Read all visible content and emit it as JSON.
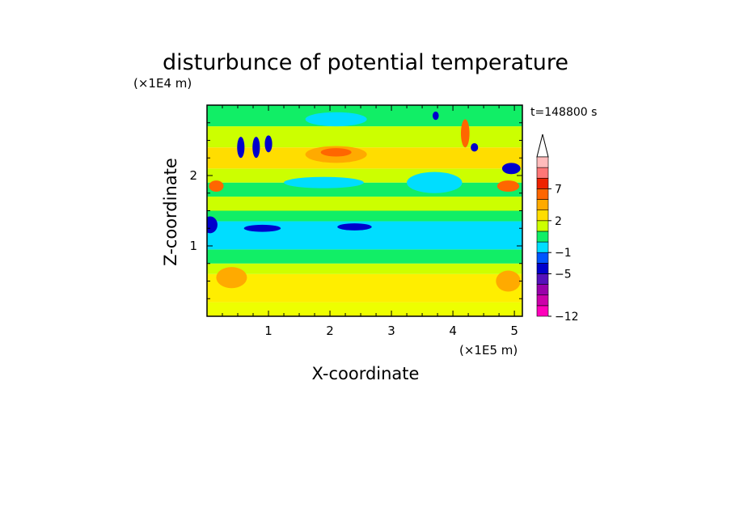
{
  "chart_data": {
    "type": "heatmap",
    "title": "disturbunce of potential temperature",
    "xlabel": "X-coordinate",
    "ylabel": "Z-coordinate",
    "x_unit": "(×1E5 m)",
    "y_unit": "(×1E4 m)",
    "time_label": "t=148800 s",
    "xlim": [
      0,
      5.13
    ],
    "ylim": [
      0,
      3.0
    ],
    "x_ticks": [
      1,
      2,
      3,
      4,
      5
    ],
    "y_ticks": [
      1,
      2
    ],
    "colorbar": {
      "labels": [
        {
          "value": -12,
          "text": "−12"
        },
        {
          "value": -5,
          "text": "−5"
        },
        {
          "value": -1,
          "text": "−1"
        },
        {
          "value": 2,
          "text": "2"
        },
        {
          "value": 7,
          "text": "7"
        }
      ],
      "colors": [
        "#ff00bb",
        "#cc00aa",
        "#9900aa",
        "#5511bb",
        "#0000cc",
        "#0055ff",
        "#00ddff",
        "#11ee66",
        "#ccff00",
        "#ffdd00",
        "#ffaa00",
        "#ff6600",
        "#ee2200",
        "#ff7777",
        "#ffbbbb"
      ],
      "extend": "max"
    },
    "bands": [
      {
        "z": [
          0.0,
          0.2
        ],
        "value": 1,
        "color": "#eeff00"
      },
      {
        "z": [
          0.2,
          0.6
        ],
        "value": 2,
        "color": "#ffee00"
      },
      {
        "z": [
          0.6,
          0.75
        ],
        "value": 1,
        "color": "#ccff00"
      },
      {
        "z": [
          0.75,
          0.95
        ],
        "value": 0,
        "color": "#11ee66"
      },
      {
        "z": [
          0.95,
          1.35
        ],
        "value": -1,
        "color": "#00ddff"
      },
      {
        "z": [
          1.35,
          1.5
        ],
        "value": 0,
        "color": "#11ee66"
      },
      {
        "z": [
          1.5,
          1.7
        ],
        "value": 1,
        "color": "#ccff00"
      },
      {
        "z": [
          1.7,
          1.9
        ],
        "value": 0,
        "color": "#11ee66"
      },
      {
        "z": [
          1.9,
          2.1
        ],
        "value": 1,
        "color": "#ccff00"
      },
      {
        "z": [
          2.1,
          2.4
        ],
        "value": 2,
        "color": "#ffdd00"
      },
      {
        "z": [
          2.4,
          2.7
        ],
        "value": 1,
        "color": "#ccff00"
      },
      {
        "z": [
          2.7,
          3.0
        ],
        "value": 0,
        "color": "#11ee66"
      }
    ],
    "features": [
      {
        "x": 0.05,
        "z": 1.3,
        "rx": 0.12,
        "rz": 0.12,
        "value": -5,
        "color": "#0000cc"
      },
      {
        "x": 2.1,
        "z": 2.3,
        "rx": 0.5,
        "rz": 0.12,
        "value": 4,
        "color": "#ffaa00"
      },
      {
        "x": 2.1,
        "z": 2.33,
        "rx": 0.25,
        "rz": 0.06,
        "value": 5,
        "color": "#ff6600"
      },
      {
        "x": 0.9,
        "z": 1.25,
        "rx": 0.3,
        "rz": 0.05,
        "value": -5,
        "color": "#0000cc"
      },
      {
        "x": 2.4,
        "z": 1.27,
        "rx": 0.28,
        "rz": 0.05,
        "value": -5,
        "color": "#0000cc"
      },
      {
        "x": 0.55,
        "z": 2.4,
        "rx": 0.06,
        "rz": 0.15,
        "value": -5,
        "color": "#0000cc"
      },
      {
        "x": 0.8,
        "z": 2.4,
        "rx": 0.06,
        "rz": 0.15,
        "value": -5,
        "color": "#0000cc"
      },
      {
        "x": 1.0,
        "z": 2.45,
        "rx": 0.06,
        "rz": 0.12,
        "value": -5,
        "color": "#0000cc"
      },
      {
        "x": 3.72,
        "z": 2.85,
        "rx": 0.05,
        "rz": 0.06,
        "value": -5,
        "color": "#0000cc"
      },
      {
        "x": 4.35,
        "z": 2.4,
        "rx": 0.06,
        "rz": 0.06,
        "value": -5,
        "color": "#0000cc"
      },
      {
        "x": 4.95,
        "z": 2.1,
        "rx": 0.15,
        "rz": 0.08,
        "value": -5,
        "color": "#0000cc"
      },
      {
        "x": 4.9,
        "z": 1.85,
        "rx": 0.18,
        "rz": 0.08,
        "value": 5,
        "color": "#ff6600"
      },
      {
        "x": 0.15,
        "z": 1.85,
        "rx": 0.12,
        "rz": 0.08,
        "value": 5,
        "color": "#ff6600"
      },
      {
        "x": 4.2,
        "z": 2.6,
        "rx": 0.07,
        "rz": 0.2,
        "value": 5,
        "color": "#ff6600"
      },
      {
        "x": 0.4,
        "z": 0.55,
        "rx": 0.25,
        "rz": 0.15,
        "value": 3,
        "color": "#ffaa00"
      },
      {
        "x": 4.9,
        "z": 0.5,
        "rx": 0.2,
        "rz": 0.15,
        "value": 3,
        "color": "#ffaa00"
      },
      {
        "x": 3.7,
        "z": 1.9,
        "rx": 0.45,
        "rz": 0.15,
        "value": -1,
        "color": "#00ddff"
      },
      {
        "x": 1.9,
        "z": 1.9,
        "rx": 0.65,
        "rz": 0.08,
        "value": -1,
        "color": "#00ddff"
      },
      {
        "x": 2.1,
        "z": 2.8,
        "rx": 0.5,
        "rz": 0.1,
        "value": -1,
        "color": "#00ddff"
      }
    ]
  }
}
